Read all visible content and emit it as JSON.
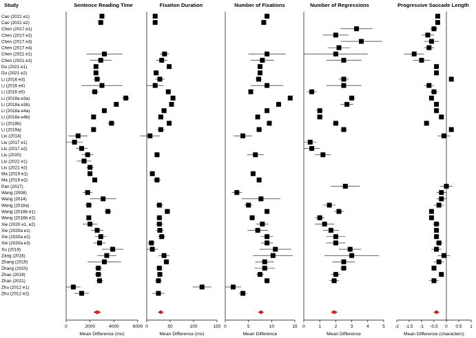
{
  "chart_data": {
    "type": "forest",
    "studies_header": "Study",
    "studies": [
      "Cao (2021 e1)",
      "Cao (2021 e2)",
      "Chen (2017 e1)",
      "Chen (2017 e2)",
      "Chen (2017 e3)",
      "Chen (2017 e4)",
      "Chen (2021 e1)",
      "Chen (2021 e2)",
      "Du (2021 e1)",
      "Du (2021 e2)",
      "Li (2016 e3)",
      "Li (2016 e4)",
      "Li (2016 e5)",
      "Li (2018a e3a)",
      "Li (2018a e3b)",
      "Li (2018a e4a)",
      "Li (2018a e4b)",
      "Li (2018b)",
      "Li (2019a)",
      "Liu (2014)",
      "Liu (2017 e1)",
      "Liu (2017 e2)",
      "Liu (2020)",
      "Liu (2021 e1)",
      "Liu (2021 e2)",
      "Ma (2019 e1)",
      "Ma (2019 e2)",
      "Pan (2017)",
      "Wang (2008)",
      "Wang (2014)",
      "Wang (2018a)",
      "Wang (2018b e1)",
      "Wang (2018b e2)",
      "Xie (2020 e1, e2)",
      "Xie (2020a e1)",
      "Xie (2020a e2)",
      "Xie (2020a e3)",
      "Xu (2019)",
      "Zang (2016)",
      "Zhang (2019)",
      "Zhang (2020)",
      "Zhao (2019)",
      "Zhao (2021)",
      "Zhu (2012 e1)",
      "Zhu (2012 e2)"
    ],
    "panels": [
      {
        "title": "Sentence Reading Time",
        "xlabel": "Mean Difference (ms)",
        "xlim": [
          0,
          6000
        ],
        "ticks": [
          0,
          2000,
          4000,
          6000
        ],
        "tick_labels": [
          "0",
          "2000",
          "4000",
          "6000"
        ],
        "estimates": [
          3000,
          2900,
          null,
          null,
          null,
          null,
          3200,
          2900,
          2500,
          2500,
          2600,
          3000,
          2400,
          5000,
          4200,
          3200,
          2300,
          3800,
          2300,
          1000,
          700,
          1300,
          1800,
          1500,
          2000,
          2000,
          2400,
          null,
          1800,
          3100,
          1900,
          3500,
          1900,
          2000,
          2600,
          2900,
          2800,
          3900,
          3400,
          3200,
          2700,
          2700,
          2800,
          600,
          1300
        ],
        "ci_low": [
          2800,
          2700,
          null,
          null,
          null,
          null,
          1700,
          2000,
          2300,
          2300,
          2300,
          1300,
          2100,
          4700,
          4000,
          3000,
          2100,
          3500,
          2100,
          200,
          0,
          800,
          1300,
          900,
          1700,
          1800,
          2200,
          null,
          1400,
          2000,
          1600,
          3200,
          1700,
          1400,
          2100,
          2400,
          2300,
          3000,
          2600,
          1800,
          2400,
          2400,
          2500,
          0,
          700
        ],
        "ci_high": [
          3200,
          3100,
          null,
          null,
          null,
          null,
          4700,
          3800,
          2700,
          2700,
          2900,
          4700,
          2700,
          5300,
          4400,
          3400,
          2500,
          4100,
          2500,
          1800,
          1400,
          1800,
          2300,
          2100,
          2300,
          2200,
          2600,
          null,
          2200,
          4200,
          2200,
          3800,
          2100,
          2600,
          3100,
          3400,
          3300,
          4800,
          4200,
          4600,
          3000,
          3000,
          3100,
          1200,
          1900
        ],
        "pooled": {
          "estimate": 2600,
          "ci_low": 2300,
          "ci_high": 2900
        }
      },
      {
        "title": "Fixation Duration",
        "xlabel": "Mean Difference (ms)",
        "xlim": [
          0,
          150
        ],
        "ticks": [
          0,
          50,
          100,
          150
        ],
        "tick_labels": [
          "0",
          "50",
          "100",
          "150"
        ],
        "estimates": [
          18,
          18,
          null,
          null,
          null,
          null,
          38,
          32,
          48,
          20,
          28,
          18,
          46,
          56,
          53,
          37,
          30,
          48,
          30,
          7,
          null,
          null,
          22,
          null,
          null,
          12,
          22,
          null,
          null,
          null,
          27,
          44,
          27,
          27,
          28,
          32,
          10,
          12,
          37,
          42,
          27,
          28,
          25,
          118,
          25
        ],
        "ci_low": [
          15,
          15,
          null,
          null,
          null,
          null,
          28,
          20,
          45,
          14,
          18,
          0,
          42,
          52,
          49,
          31,
          24,
          44,
          22,
          -14,
          null,
          null,
          16,
          null,
          null,
          8,
          14,
          null,
          null,
          null,
          19,
          38,
          21,
          19,
          20,
          24,
          2,
          0,
          25,
          36,
          20,
          22,
          18,
          98,
          12
        ],
        "ci_high": [
          21,
          21,
          null,
          null,
          null,
          null,
          48,
          44,
          51,
          26,
          38,
          36,
          50,
          60,
          57,
          43,
          36,
          52,
          38,
          28,
          null,
          null,
          28,
          null,
          null,
          16,
          30,
          null,
          null,
          null,
          35,
          50,
          33,
          35,
          36,
          40,
          18,
          24,
          49,
          48,
          34,
          34,
          32,
          138,
          38
        ],
        "pooled": {
          "estimate": 30,
          "ci_low": 26,
          "ci_high": 34
        }
      },
      {
        "title": "Number of Fixations",
        "xlabel": "Mean Difference",
        "xlim": [
          0,
          15
        ],
        "ticks": [
          0,
          5,
          10,
          15
        ],
        "tick_labels": [
          "0",
          "5",
          "10",
          "15"
        ],
        "estimates": [
          9,
          8.3,
          null,
          null,
          null,
          null,
          9,
          8,
          7.5,
          7.5,
          7.2,
          9,
          5.5,
          14,
          11.5,
          9,
          7,
          9.5,
          7.3,
          3.8,
          null,
          null,
          6.5,
          null,
          null,
          6,
          7.3,
          null,
          2.5,
          7.7,
          5,
          9,
          5.8,
          8,
          7,
          9,
          9,
          10.8,
          10.3,
          8.5,
          8.5,
          7.5,
          9,
          1.7,
          3.8
        ],
        "ci_low": [
          8.6,
          7.9,
          null,
          null,
          null,
          null,
          5,
          5.5,
          7.1,
          7.1,
          6.5,
          5.5,
          5,
          13.6,
          11.1,
          8.6,
          6.6,
          9.1,
          6.7,
          1.8,
          null,
          null,
          4.7,
          null,
          null,
          5.6,
          6.9,
          null,
          1.4,
          3.5,
          4.1,
          8.5,
          5.2,
          6.7,
          4.8,
          7.7,
          7.7,
          7.4,
          6,
          6.5,
          6.3,
          6.7,
          8.4,
          0,
          2.9
        ],
        "ci_high": [
          9.4,
          8.7,
          null,
          null,
          null,
          null,
          13,
          10.5,
          7.9,
          7.9,
          7.9,
          12.5,
          6,
          14.4,
          11.9,
          9.4,
          7.4,
          9.9,
          7.9,
          5.8,
          null,
          null,
          8.3,
          null,
          null,
          6.4,
          7.7,
          null,
          3.6,
          11.9,
          5.9,
          9.5,
          6.4,
          9.3,
          9.2,
          10.3,
          10.3,
          14.2,
          14.6,
          10.5,
          10.7,
          8.3,
          9.6,
          3.4,
          4.7
        ],
        "pooled": {
          "estimate": 7.7,
          "ci_low": 7.2,
          "ci_high": 8.2
        }
      },
      {
        "title": "Number of Regressions",
        "xlabel": "Mean Difference",
        "xlim": [
          0,
          5
        ],
        "ticks": [
          0,
          1,
          2,
          3,
          4,
          5
        ],
        "tick_labels": [
          "0",
          "1",
          "2",
          "3",
          "4",
          "5"
        ],
        "estimates": [
          null,
          null,
          3.3,
          2,
          3.6,
          2.2,
          2,
          2.5,
          null,
          null,
          2.5,
          2.5,
          0.5,
          3,
          2.7,
          1,
          1,
          2,
          2.5,
          null,
          0.4,
          0.5,
          1.2,
          null,
          null,
          null,
          null,
          2.6,
          null,
          null,
          1.6,
          2.2,
          1,
          1.3,
          1.7,
          2,
          2,
          2.9,
          3,
          2.5,
          2.5,
          2,
          1.9,
          null,
          null
        ],
        "ci_low": [
          null,
          null,
          2.3,
          1.2,
          2.3,
          1.5,
          0,
          1.4,
          null,
          null,
          2.2,
          1.4,
          0.2,
          2.8,
          2.3,
          0.8,
          0.8,
          1.8,
          2.3,
          null,
          0,
          0,
          0.7,
          null,
          null,
          null,
          null,
          1.7,
          null,
          null,
          1.2,
          1.9,
          0.7,
          0.7,
          1.2,
          1.4,
          1.4,
          2.2,
          1.3,
          1.8,
          2.3,
          1.7,
          1.6,
          null,
          null
        ],
        "ci_high": [
          null,
          null,
          4.3,
          2.8,
          4.9,
          2.9,
          4,
          3.6,
          null,
          null,
          2.8,
          3.6,
          0.8,
          3.2,
          3.1,
          1.2,
          1.2,
          2.2,
          2.7,
          null,
          0.8,
          1,
          1.7,
          null,
          null,
          null,
          null,
          3.5,
          null,
          null,
          2,
          2.5,
          1.3,
          1.9,
          2.2,
          2.6,
          2.6,
          3.6,
          4.7,
          3.2,
          2.7,
          2.3,
          2.2,
          null,
          null
        ],
        "pooled": {
          "estimate": 1.9,
          "ci_low": 1.7,
          "ci_high": 2.1
        }
      },
      {
        "title": "Progressive Saccade Length",
        "xlabel": "Mean Difference (characters)",
        "xlim": [
          -2,
          1
        ],
        "ticks": [
          -2,
          -1.5,
          -1,
          -0.5,
          0,
          0.5,
          1
        ],
        "tick_labels": [
          "-2",
          "-1.5",
          "-1",
          "-0.5",
          "0",
          "0.5",
          "1"
        ],
        "estimates": [
          -0.35,
          -0.35,
          -0.5,
          -0.75,
          -0.6,
          -0.7,
          -1.3,
          -1,
          -0.4,
          -0.4,
          0.2,
          -0.7,
          -0.5,
          -0.6,
          -0.4,
          -0.4,
          -0.2,
          -0.8,
          0.2,
          -0.1,
          null,
          null,
          null,
          null,
          null,
          null,
          null,
          0,
          -0.2,
          -0.2,
          -0.3,
          -0.6,
          -0.6,
          -0.4,
          -0.4,
          -0.4,
          -0.3,
          -0.4,
          -0.1,
          -0.3,
          -0.5,
          -0.2,
          -0.5,
          null,
          null
        ],
        "ci_low": [
          -0.4,
          -0.4,
          -0.65,
          -1,
          -0.9,
          -0.9,
          -1.7,
          -1.35,
          -0.45,
          -0.45,
          0.15,
          -0.9,
          -0.65,
          -0.7,
          -0.45,
          -0.45,
          -0.3,
          -0.85,
          0.15,
          -0.35,
          null,
          null,
          null,
          null,
          null,
          null,
          null,
          -0.25,
          -0.4,
          -0.4,
          -0.5,
          -0.65,
          -0.65,
          -0.55,
          -0.5,
          -0.5,
          -0.45,
          -0.6,
          -0.35,
          -0.5,
          -0.6,
          -0.3,
          -0.7,
          null,
          null
        ],
        "ci_high": [
          -0.3,
          -0.3,
          -0.35,
          -0.5,
          -0.3,
          -0.5,
          -0.9,
          -0.65,
          -0.35,
          -0.35,
          0.25,
          -0.5,
          -0.35,
          -0.5,
          -0.35,
          -0.35,
          -0.1,
          -0.75,
          0.25,
          0.15,
          null,
          null,
          null,
          null,
          null,
          null,
          null,
          0.25,
          0,
          0,
          -0.1,
          -0.55,
          -0.55,
          -0.25,
          -0.3,
          -0.3,
          -0.15,
          -0.2,
          0.15,
          -0.1,
          -0.4,
          -0.1,
          -0.3,
          null,
          null
        ],
        "pooled": {
          "estimate": -0.4,
          "ci_low": -0.45,
          "ci_high": -0.35
        }
      }
    ],
    "colors": {
      "marker": "#000000",
      "ci_line": "#000000",
      "pooled": "#e8201c",
      "axis": "#000000"
    }
  }
}
